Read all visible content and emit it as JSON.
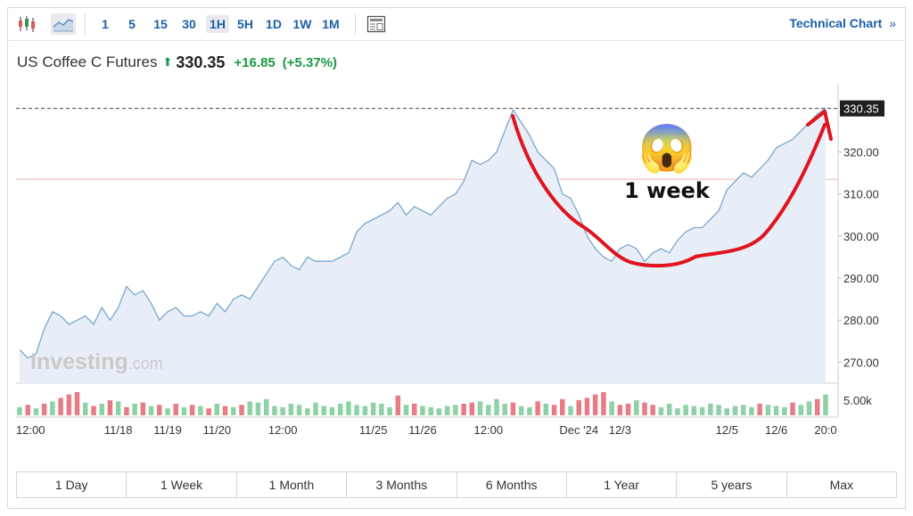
{
  "toolbar": {
    "intervals": [
      "1",
      "5",
      "15",
      "30",
      "1H",
      "5H",
      "1D",
      "1W",
      "1M"
    ],
    "active_interval": "1H",
    "technical_chart_label": "Technical Chart",
    "technical_chart_chevron": "»",
    "icons": [
      "candlestick-icon",
      "area-chart-icon",
      "news-panel-icon"
    ]
  },
  "instrument": {
    "name": "US Coffee C Futures",
    "direction": "up",
    "price": "330.35",
    "change": "+16.85",
    "change_pct": "(+5.37%)"
  },
  "annotation": {
    "emoji": "😱",
    "text": "1 week"
  },
  "watermark": {
    "brand": "Investing",
    "suffix": ".com"
  },
  "ranges": [
    "1 Day",
    "1 Week",
    "1 Month",
    "3 Months",
    "6 Months",
    "1 Year",
    "5 years",
    "Max"
  ],
  "colors": {
    "line": "#7ba7cc",
    "fill": "#e7eef7",
    "up_volume": "#8fd1a6",
    "down_volume": "#e87c86",
    "annotation": "#e0141e",
    "accent": "#1d5fa8",
    "positive": "#1a9a43"
  },
  "chart_data": {
    "type": "area",
    "ylim": [
      265,
      336
    ],
    "yticks": [
      "270.00",
      "280.00",
      "290.00",
      "300.00",
      "310.00",
      "320.00"
    ],
    "last_price_label": "330.35",
    "last_price": 330.35,
    "previous_close": 313.5,
    "xticks": [
      {
        "label": "12:00",
        "i": 0
      },
      {
        "label": "11/18",
        "i": 12
      },
      {
        "label": "11/19",
        "i": 18
      },
      {
        "label": "11/20",
        "i": 24
      },
      {
        "label": "12:00",
        "i": 32
      },
      {
        "label": "11/25",
        "i": 43
      },
      {
        "label": "11/26",
        "i": 49
      },
      {
        "label": "12:00",
        "i": 57
      },
      {
        "label": "Dec '24",
        "i": 68
      },
      {
        "label": "12/3",
        "i": 73
      },
      {
        "label": "12/5",
        "i": 86
      },
      {
        "label": "12/6",
        "i": 92
      },
      {
        "label": "20:0",
        "i": 98
      }
    ],
    "values": [
      273,
      271,
      272,
      278,
      282,
      281,
      279,
      280,
      281,
      279,
      283,
      280,
      283,
      288,
      286,
      287,
      284,
      280,
      282,
      283,
      281,
      281,
      282,
      281,
      284,
      282,
      285,
      286,
      285,
      288,
      291,
      294,
      295,
      293,
      292,
      295,
      294,
      294,
      294,
      295,
      296,
      301,
      303,
      304,
      305,
      306,
      308,
      305,
      307,
      306,
      305,
      307,
      309,
      310,
      313,
      318,
      317,
      318,
      320,
      325,
      330,
      327,
      324,
      320,
      318,
      316,
      310,
      309,
      305,
      300,
      297,
      295,
      294,
      297,
      298,
      297,
      294,
      296,
      297,
      296,
      299,
      301,
      302,
      302,
      304,
      306,
      311,
      313,
      315,
      314,
      316,
      318,
      321,
      322,
      323,
      325,
      327,
      329,
      330.35
    ],
    "volume_axis_label": "5.00k",
    "volume": [
      {
        "v": 0.35,
        "d": "up"
      },
      {
        "v": 0.45,
        "d": "down"
      },
      {
        "v": 0.3,
        "d": "up"
      },
      {
        "v": 0.5,
        "d": "down"
      },
      {
        "v": 0.6,
        "d": "up"
      },
      {
        "v": 0.75,
        "d": "down"
      },
      {
        "v": 0.9,
        "d": "down"
      },
      {
        "v": 1.0,
        "d": "down"
      },
      {
        "v": 0.55,
        "d": "up"
      },
      {
        "v": 0.4,
        "d": "down"
      },
      {
        "v": 0.5,
        "d": "up"
      },
      {
        "v": 0.65,
        "d": "down"
      },
      {
        "v": 0.6,
        "d": "up"
      },
      {
        "v": 0.35,
        "d": "down"
      },
      {
        "v": 0.5,
        "d": "up"
      },
      {
        "v": 0.55,
        "d": "down"
      },
      {
        "v": 0.4,
        "d": "up"
      },
      {
        "v": 0.45,
        "d": "down"
      },
      {
        "v": 0.3,
        "d": "up"
      },
      {
        "v": 0.5,
        "d": "down"
      },
      {
        "v": 0.35,
        "d": "up"
      },
      {
        "v": 0.45,
        "d": "down"
      },
      {
        "v": 0.4,
        "d": "up"
      },
      {
        "v": 0.3,
        "d": "down"
      },
      {
        "v": 0.5,
        "d": "up"
      },
      {
        "v": 0.4,
        "d": "down"
      },
      {
        "v": 0.35,
        "d": "up"
      },
      {
        "v": 0.45,
        "d": "down"
      },
      {
        "v": 0.6,
        "d": "up"
      },
      {
        "v": 0.55,
        "d": "up"
      },
      {
        "v": 0.7,
        "d": "up"
      },
      {
        "v": 0.4,
        "d": "up"
      },
      {
        "v": 0.35,
        "d": "up"
      },
      {
        "v": 0.5,
        "d": "up"
      },
      {
        "v": 0.45,
        "d": "up"
      },
      {
        "v": 0.3,
        "d": "up"
      },
      {
        "v": 0.55,
        "d": "up"
      },
      {
        "v": 0.4,
        "d": "up"
      },
      {
        "v": 0.35,
        "d": "up"
      },
      {
        "v": 0.5,
        "d": "up"
      },
      {
        "v": 0.6,
        "d": "up"
      },
      {
        "v": 0.45,
        "d": "up"
      },
      {
        "v": 0.4,
        "d": "up"
      },
      {
        "v": 0.55,
        "d": "up"
      },
      {
        "v": 0.5,
        "d": "up"
      },
      {
        "v": 0.35,
        "d": "up"
      },
      {
        "v": 0.85,
        "d": "down"
      },
      {
        "v": 0.45,
        "d": "up"
      },
      {
        "v": 0.5,
        "d": "down"
      },
      {
        "v": 0.4,
        "d": "up"
      },
      {
        "v": 0.35,
        "d": "up"
      },
      {
        "v": 0.3,
        "d": "up"
      },
      {
        "v": 0.4,
        "d": "up"
      },
      {
        "v": 0.45,
        "d": "up"
      },
      {
        "v": 0.5,
        "d": "down"
      },
      {
        "v": 0.55,
        "d": "down"
      },
      {
        "v": 0.6,
        "d": "up"
      },
      {
        "v": 0.45,
        "d": "up"
      },
      {
        "v": 0.7,
        "d": "up"
      },
      {
        "v": 0.5,
        "d": "up"
      },
      {
        "v": 0.55,
        "d": "down"
      },
      {
        "v": 0.4,
        "d": "up"
      },
      {
        "v": 0.35,
        "d": "up"
      },
      {
        "v": 0.6,
        "d": "down"
      },
      {
        "v": 0.5,
        "d": "up"
      },
      {
        "v": 0.45,
        "d": "down"
      },
      {
        "v": 0.7,
        "d": "down"
      },
      {
        "v": 0.4,
        "d": "up"
      },
      {
        "v": 0.65,
        "d": "down"
      },
      {
        "v": 0.75,
        "d": "down"
      },
      {
        "v": 0.9,
        "d": "down"
      },
      {
        "v": 1.0,
        "d": "down"
      },
      {
        "v": 0.6,
        "d": "up"
      },
      {
        "v": 0.45,
        "d": "down"
      },
      {
        "v": 0.5,
        "d": "down"
      },
      {
        "v": 0.65,
        "d": "up"
      },
      {
        "v": 0.55,
        "d": "down"
      },
      {
        "v": 0.45,
        "d": "down"
      },
      {
        "v": 0.35,
        "d": "up"
      },
      {
        "v": 0.5,
        "d": "up"
      },
      {
        "v": 0.3,
        "d": "up"
      },
      {
        "v": 0.45,
        "d": "up"
      },
      {
        "v": 0.4,
        "d": "up"
      },
      {
        "v": 0.35,
        "d": "up"
      },
      {
        "v": 0.5,
        "d": "up"
      },
      {
        "v": 0.45,
        "d": "up"
      },
      {
        "v": 0.3,
        "d": "up"
      },
      {
        "v": 0.4,
        "d": "up"
      },
      {
        "v": 0.45,
        "d": "up"
      },
      {
        "v": 0.35,
        "d": "up"
      },
      {
        "v": 0.5,
        "d": "down"
      },
      {
        "v": 0.45,
        "d": "up"
      },
      {
        "v": 0.4,
        "d": "up"
      },
      {
        "v": 0.35,
        "d": "up"
      },
      {
        "v": 0.55,
        "d": "down"
      },
      {
        "v": 0.45,
        "d": "up"
      },
      {
        "v": 0.6,
        "d": "up"
      },
      {
        "v": 0.7,
        "d": "down"
      },
      {
        "v": 0.9,
        "d": "up"
      }
    ]
  }
}
